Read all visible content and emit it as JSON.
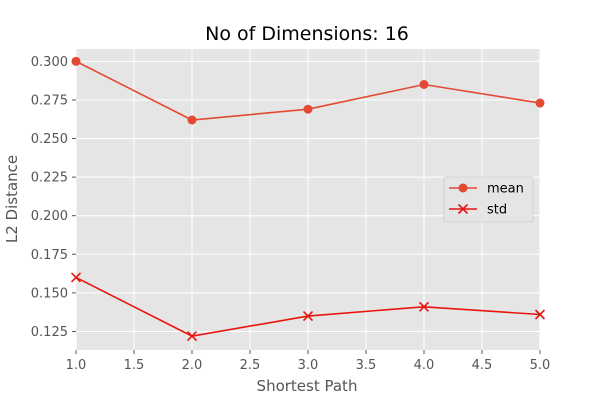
{
  "chart_data": {
    "type": "line",
    "title": "No of Dimensions: 16",
    "xlabel": "Shortest Path",
    "ylabel": "L2 Distance",
    "xlim": [
      1.0,
      5.0
    ],
    "ylim": [
      0.113,
      0.308
    ],
    "xticks": [
      "1.0",
      "1.5",
      "2.0",
      "2.5",
      "3.0",
      "3.5",
      "4.0",
      "4.5",
      "5.0"
    ],
    "yticks": [
      "0.125",
      "0.150",
      "0.175",
      "0.200",
      "0.225",
      "0.250",
      "0.275",
      "0.300"
    ],
    "grid": true,
    "legend_position": "center-right",
    "x": [
      1.0,
      2.0,
      3.0,
      4.0,
      5.0
    ],
    "series": [
      {
        "name": "mean",
        "marker": "circle",
        "color": "#E24A33",
        "values": [
          0.3,
          0.262,
          0.269,
          0.285,
          0.273
        ]
      },
      {
        "name": "std",
        "marker": "x",
        "color": "#E8150E",
        "values": [
          0.16,
          0.122,
          0.135,
          0.141,
          0.136
        ]
      }
    ]
  },
  "colors": {
    "plot_background": "#E5E5E5",
    "grid": "#FFFFFF",
    "text": "#555555"
  }
}
